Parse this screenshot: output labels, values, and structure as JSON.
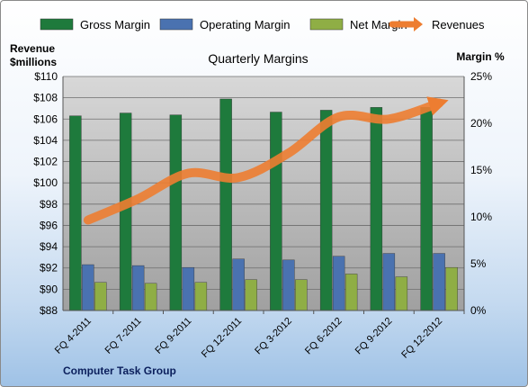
{
  "chart_data": {
    "type": "bar",
    "title": "Quarterly Margins",
    "categories": [
      "FQ 4-2011",
      "FQ 7-2011",
      "FQ 9-2011",
      "FQ 12-2011",
      "FQ 3-2012",
      "FQ 6-2012",
      "FQ 9-2012",
      "FQ 12-2012"
    ],
    "series": [
      {
        "name": "Gross Margin",
        "axis": "right",
        "color": "#1e7a3c",
        "values": [
          20.8,
          21.1,
          20.9,
          22.6,
          21.2,
          21.4,
          21.7,
          21.7
        ]
      },
      {
        "name": "Operating Margin",
        "axis": "right",
        "color": "#4a72b0",
        "values": [
          4.9,
          4.8,
          4.6,
          5.5,
          5.4,
          5.8,
          6.1,
          6.1
        ]
      },
      {
        "name": "Net Margin",
        "axis": "right",
        "color": "#8fae45",
        "values": [
          3.0,
          2.9,
          3.0,
          3.3,
          3.3,
          3.9,
          3.6,
          4.6
        ]
      },
      {
        "name": "Revenues",
        "type": "line",
        "axis": "left",
        "color": "#ed7d31",
        "values": [
          96.5,
          98.5,
          100.9,
          100.5,
          102.8,
          106.2,
          106.0,
          107.5
        ]
      }
    ],
    "ylabel_left": "Revenue $millions",
    "ylabel_right": "Margin %",
    "ylim_left": [
      88,
      110
    ],
    "ylim_right": [
      0,
      25
    ],
    "yticks_left": [
      "$88",
      "$90",
      "$92",
      "$94",
      "$96",
      "$98",
      "$100",
      "$102",
      "$104",
      "$106",
      "$108",
      "$110"
    ],
    "yticks_right": [
      "0%",
      "5%",
      "10%",
      "15%",
      "20%",
      "25%"
    ],
    "legend_position": "top",
    "grid": true,
    "footer": "Computer Task Group"
  }
}
